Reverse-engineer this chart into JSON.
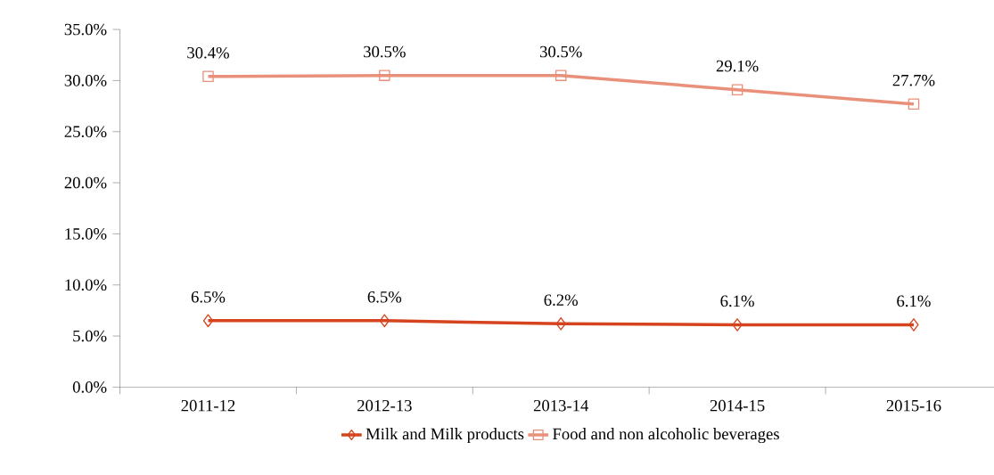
{
  "chart_data": {
    "type": "line",
    "categories": [
      "2011-12",
      "2012-13",
      "2013-14",
      "2014-15",
      "2015-16"
    ],
    "series": [
      {
        "name": "Milk and Milk products",
        "color": "#d5441f",
        "marker": "diamond",
        "values": [
          6.5,
          6.5,
          6.2,
          6.1,
          6.1
        ],
        "value_labels": [
          "6.5%",
          "6.5%",
          "6.2%",
          "6.1%",
          "6.1%"
        ]
      },
      {
        "name": "Food and non alcoholic beverages",
        "color": "#e8907a",
        "marker": "square",
        "values": [
          30.4,
          30.5,
          30.5,
          29.1,
          27.7
        ],
        "value_labels": [
          "30.4%",
          "30.5%",
          "30.5%",
          "29.1%",
          "27.7%"
        ]
      }
    ],
    "ylim": [
      0,
      35
    ],
    "yticks": [
      {
        "value": 0,
        "label": "0.0%"
      },
      {
        "value": 5,
        "label": "5.0%"
      },
      {
        "value": 10,
        "label": "10.0%"
      },
      {
        "value": 15,
        "label": "15.0%"
      },
      {
        "value": 20,
        "label": "20.0%"
      },
      {
        "value": 25,
        "label": "25.0%"
      },
      {
        "value": 30,
        "label": "30.0%"
      },
      {
        "value": 35,
        "label": "35.0%"
      }
    ],
    "grid": false,
    "legend": "bottom",
    "line_style": "solid"
  }
}
